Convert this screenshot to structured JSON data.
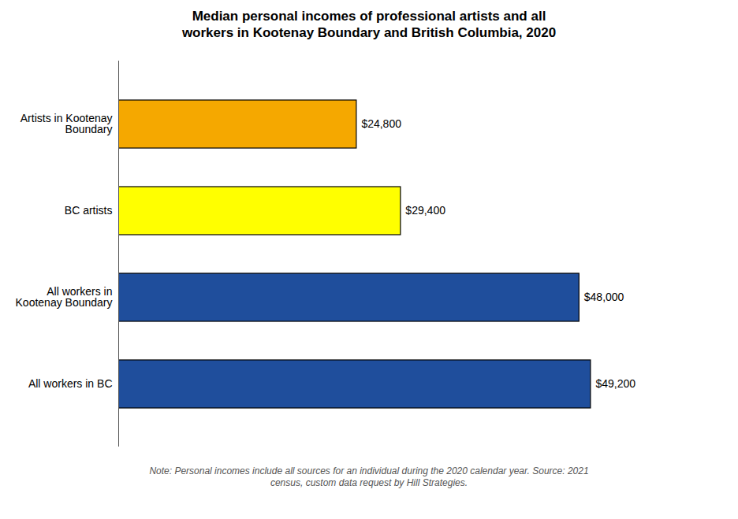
{
  "chart_data": {
    "type": "bar",
    "orientation": "horizontal",
    "title": "Median personal incomes of professional artists and all\nworkers in Kootenay Boundary and British Columbia, 2020",
    "categories": [
      "Artists in Kootenay\nBoundary",
      "BC artists",
      "All workers in\nKootenay Boundary",
      "All workers in BC"
    ],
    "values": [
      24800,
      29400,
      48000,
      49200
    ],
    "value_labels": [
      "$24,800",
      "$29,400",
      "$48,000",
      "$49,200"
    ],
    "colors": [
      "#F5A800",
      "#FFFF00",
      "#1F4E9C",
      "#1F4E9C"
    ],
    "xlim": [
      0,
      58000
    ],
    "data_labels": true,
    "tick_labels": "y",
    "grid": false,
    "annotations": [
      "Note: Personal incomes include all sources for an individual during the 2020 calendar year.  Source: 2021\ncensus, custom data request by Hill Strategies."
    ]
  }
}
